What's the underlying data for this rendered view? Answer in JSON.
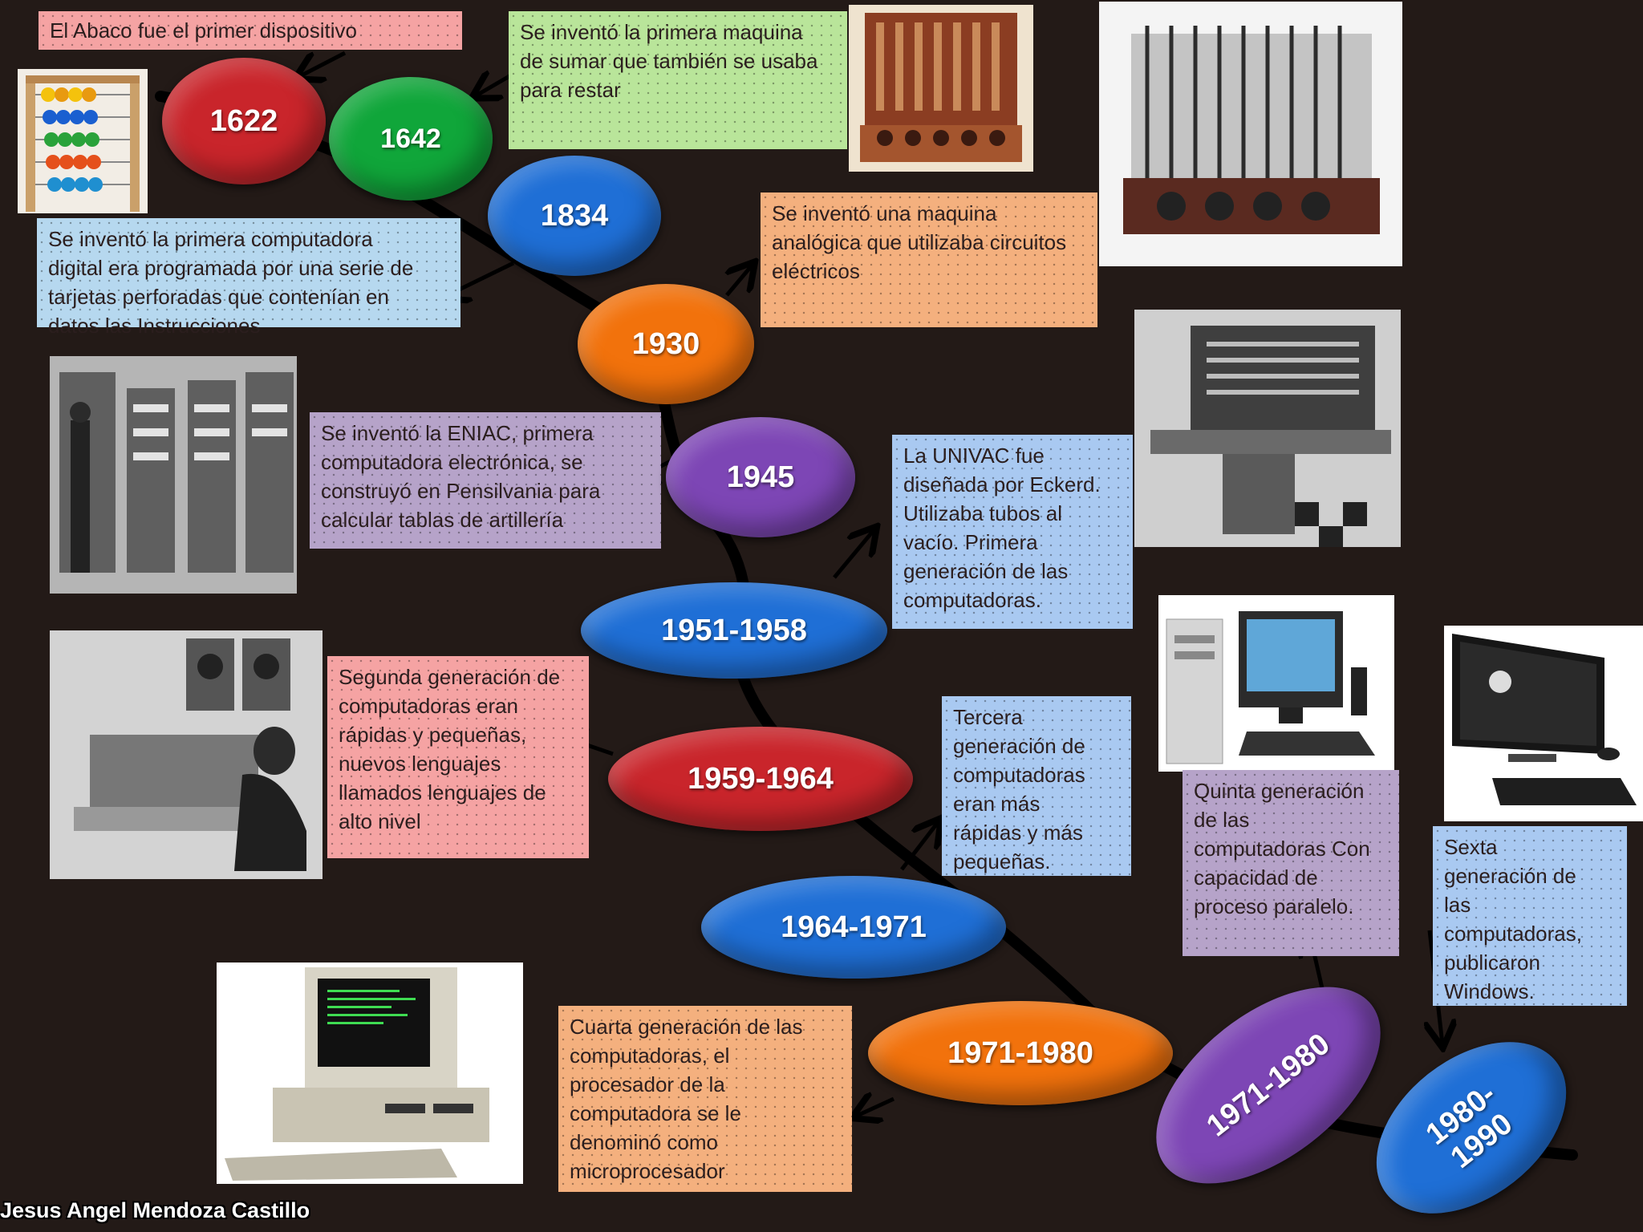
{
  "author": "Jesus Angel Mendoza Castillo",
  "colors": {
    "background": "#231a17",
    "red": "#c9252b",
    "green": "#10a63a",
    "blue": "#1f6fd6",
    "orange": "#f2720c",
    "purple": "#7d46b5",
    "box_pink": "#f5a3a3",
    "box_green": "#b9e59a",
    "box_blue": "#b6d8ef",
    "box_orange": "#f4b07e",
    "box_purple": "#b6a3c9",
    "box_lightblue": "#a9c9f1"
  },
  "nodes": [
    {
      "label": "1622",
      "color": "red"
    },
    {
      "label": "1642",
      "color": "green"
    },
    {
      "label": "1834",
      "color": "blue"
    },
    {
      "label": "1930",
      "color": "orange"
    },
    {
      "label": "1945",
      "color": "purple"
    },
    {
      "label": "1951-1958",
      "color": "blue"
    },
    {
      "label": "1959-1964",
      "color": "red"
    },
    {
      "label": "1964-1971",
      "color": "blue"
    },
    {
      "label": "1971-1980",
      "color": "orange"
    },
    {
      "label": "1971-1980",
      "color": "purple"
    },
    {
      "label": "1980-\n1990",
      "color": "blue"
    }
  ],
  "boxes": [
    {
      "text": "El Abaco fue el primer dispositivo"
    },
    {
      "text": "Se inventó la primera maquina\nde sumar que también se usaba\npara restar"
    },
    {
      "text": "Se inventó la primera computadora\ndigital era programada por una serie de\ntarjetas perforadas que contenían en\ndatos las Instrucciones"
    },
    {
      "text": "Se inventó una maquina\nanalógica que utilizaba circuitos\neléctricos"
    },
    {
      "text": "Se inventó la ENIAC, primera\ncomputadora electrónica, se\nconstruyó en Pensilvania para\ncalcular tablas de artillería"
    },
    {
      "text": "La UNIVAC fue\ndiseñada por Eckerd.\nUtilizaba tubos al\nvacío. Primera\ngeneración de las\ncomputadoras."
    },
    {
      "text": "Segunda generación de\ncomputadoras eran\nrápidas y pequeñas,\nnuevos lenguajes\nllamados lenguajes de\nalto nivel"
    },
    {
      "text": "Tercera\ngeneración de\ncomputadoras\neran más\nrápidas y más\npequeñas."
    },
    {
      "text": "Cuarta generación de las\ncomputadoras, el\nprocesador de la\ncomputadora se le\ndenominó como\nmicroprocesador"
    },
    {
      "text": "Quinta generación\nde las\ncomputadoras Con\ncapacidad de\nproceso paralelo."
    },
    {
      "text": "Sexta\ngeneración de\nlas\ncomputadoras,\npublicaron\nWindows."
    }
  ],
  "photos": [
    {
      "name": "abacus-photo"
    },
    {
      "name": "adding-machine-photo"
    },
    {
      "name": "analytical-engine-photo"
    },
    {
      "name": "eniac-photo"
    },
    {
      "name": "univac-photo"
    },
    {
      "name": "second-gen-operator-photo"
    },
    {
      "name": "ibm-pc-photo"
    },
    {
      "name": "desktop-pc-photo"
    },
    {
      "name": "hp-all-in-one-photo"
    }
  ]
}
